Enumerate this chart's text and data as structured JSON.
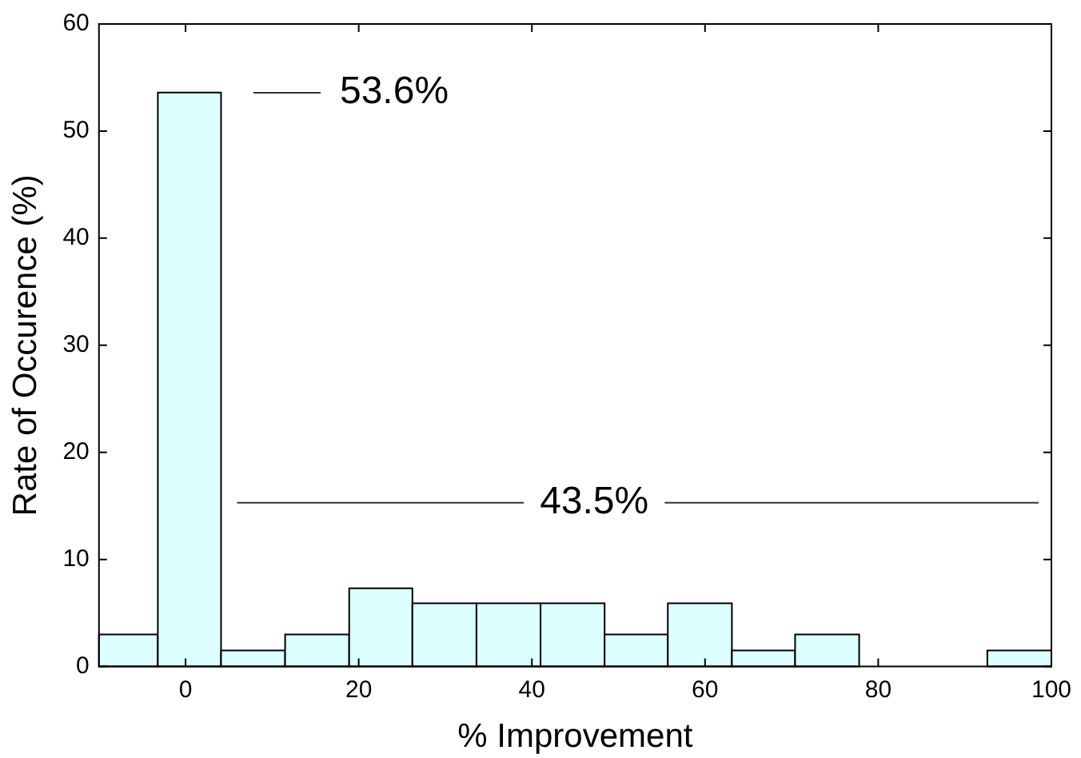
{
  "chart_data": {
    "type": "histogram",
    "xlabel": "% Improvement",
    "ylabel": "Rate of Occurence (%)",
    "bins": [
      -10,
      -3.2,
      4.1,
      11.5,
      18.9,
      26.2,
      33.6,
      41,
      48.4,
      55.7,
      63.1,
      70.4,
      77.8,
      92.6,
      100
    ],
    "values": [
      3,
      53.6,
      1.5,
      3,
      7.3,
      5.9,
      5.9,
      5.9,
      3,
      5.9,
      1.5,
      3,
      0,
      1.5
    ],
    "color": "#ddffff",
    "xlim": [
      -10,
      100
    ],
    "xticks": [
      0,
      20,
      40,
      60,
      80,
      100
    ],
    "ylim": [
      0,
      60
    ],
    "yticks": [
      0,
      10,
      20,
      30,
      40,
      50,
      60
    ],
    "grid": false,
    "legend": false,
    "annotations": [
      "53.6%",
      "43.5%"
    ]
  }
}
